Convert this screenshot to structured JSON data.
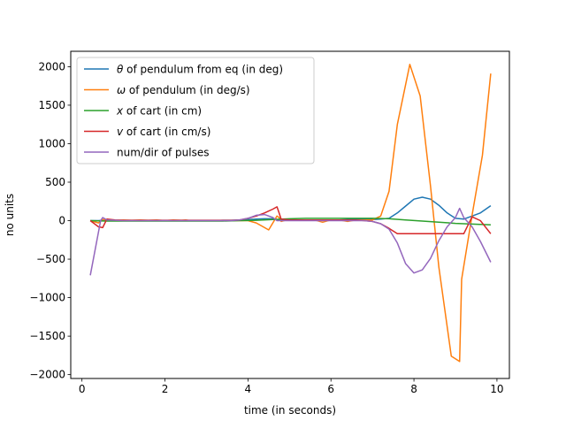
{
  "chart_data": {
    "type": "line",
    "title": "",
    "xlabel": "time (in seconds)",
    "ylabel": "no units",
    "xlim": [
      -0.27,
      10.3
    ],
    "ylim": [
      -2050,
      2200
    ],
    "xticks": [
      0,
      2,
      4,
      6,
      8,
      10
    ],
    "yticks": [
      -2000,
      -1500,
      -1000,
      -500,
      0,
      500,
      1000,
      1500,
      2000
    ],
    "grid": false,
    "legend": {
      "placement": "top-left"
    },
    "series": [
      {
        "name": "θ of pendulum from eq (in deg)",
        "legend_prefix": "θ",
        "legend_rest": " of pendulum from eq (in deg)",
        "color": "#1f77b4",
        "x": [
          0.2,
          0.4,
          0.5,
          0.6,
          0.8,
          1.0,
          1.2,
          1.4,
          1.6,
          1.8,
          2.0,
          2.2,
          2.4,
          2.6,
          2.8,
          3.0,
          3.2,
          3.4,
          3.6,
          3.8,
          4.0,
          4.2,
          4.4,
          4.6,
          4.7,
          4.75,
          4.8,
          5.0,
          5.2,
          5.4,
          5.6,
          5.8,
          6.0,
          6.2,
          6.4,
          6.6,
          6.8,
          7.0,
          7.2,
          7.4,
          7.6,
          7.8,
          8.0,
          8.2,
          8.4,
          8.6,
          8.8,
          9.0,
          9.2,
          9.4,
          9.6,
          9.85
        ],
        "y": [
          0,
          0,
          5,
          5,
          0,
          0,
          0,
          0,
          0,
          0,
          0,
          0,
          0,
          0,
          0,
          0,
          0,
          5,
          5,
          10,
          15,
          20,
          25,
          25,
          15,
          10,
          5,
          5,
          5,
          5,
          5,
          5,
          10,
          10,
          15,
          15,
          15,
          15,
          20,
          30,
          100,
          190,
          280,
          305,
          280,
          200,
          100,
          30,
          20,
          60,
          100,
          195
        ]
      },
      {
        "name": "ω of pendulum (in deg/s)",
        "legend_prefix": "ω",
        "legend_rest": " of pendulum (in deg/s)",
        "color": "#ff7f0e",
        "x": [
          0.2,
          0.4,
          0.5,
          0.6,
          0.8,
          1.0,
          1.2,
          1.4,
          1.6,
          1.8,
          2.0,
          2.2,
          2.4,
          2.5,
          2.6,
          2.8,
          3.0,
          3.2,
          3.4,
          3.6,
          3.8,
          4.0,
          4.2,
          4.5,
          4.7,
          4.75,
          4.8,
          5.0,
          5.2,
          5.4,
          5.6,
          5.8,
          6.0,
          6.2,
          6.4,
          6.6,
          6.8,
          7.0,
          7.2,
          7.4,
          7.6,
          7.9,
          8.15,
          8.4,
          8.6,
          8.9,
          9.1,
          9.15,
          9.4,
          9.65,
          9.85
        ],
        "y": [
          0,
          -30,
          15,
          10,
          5,
          10,
          5,
          10,
          5,
          10,
          0,
          10,
          5,
          10,
          0,
          0,
          0,
          0,
          0,
          0,
          0,
          0,
          -30,
          -120,
          60,
          40,
          -10,
          20,
          10,
          10,
          10,
          -20,
          10,
          10,
          -10,
          10,
          10,
          10,
          60,
          380,
          1250,
          2030,
          1620,
          450,
          -600,
          -1760,
          -1830,
          -760,
          70,
          850,
          1910
        ]
      },
      {
        "name": "x of cart (in cm)",
        "legend_prefix": "x",
        "legend_rest": " of cart (in cm)",
        "color": "#2ca02c",
        "x": [
          0.2,
          0.6,
          1.0,
          1.4,
          1.8,
          2.2,
          2.6,
          3.0,
          3.4,
          3.8,
          4.2,
          4.6,
          5.0,
          5.4,
          5.8,
          6.2,
          6.6,
          7.0,
          7.4,
          7.8,
          8.2,
          8.6,
          9.0,
          9.4,
          9.85
        ],
        "y": [
          0,
          -5,
          -5,
          -5,
          -5,
          -5,
          -5,
          -5,
          -5,
          0,
          5,
          15,
          25,
          30,
          30,
          30,
          30,
          30,
          25,
          10,
          -5,
          -20,
          -35,
          -45,
          -55
        ]
      },
      {
        "name": "v of cart  (in cm/s)",
        "legend_prefix": "v",
        "legend_rest": " of cart  (in cm/s)",
        "color": "#d62728",
        "x": [
          0.2,
          0.4,
          0.5,
          0.6,
          0.8,
          1.0,
          1.2,
          1.4,
          1.6,
          1.8,
          2.0,
          2.2,
          2.4,
          2.6,
          2.8,
          3.0,
          3.2,
          3.4,
          3.6,
          3.8,
          4.0,
          4.2,
          4.4,
          4.6,
          4.7,
          4.75,
          4.8,
          5.0,
          5.2,
          5.4,
          5.6,
          5.8,
          6.0,
          6.2,
          6.4,
          6.6,
          6.8,
          7.0,
          7.2,
          7.4,
          7.6,
          7.8,
          8.0,
          8.2,
          8.4,
          8.6,
          8.8,
          9.0,
          9.2,
          9.4,
          9.6,
          9.85
        ],
        "y": [
          0,
          -80,
          -90,
          20,
          10,
          5,
          5,
          5,
          5,
          5,
          5,
          5,
          5,
          5,
          5,
          5,
          5,
          5,
          5,
          10,
          30,
          60,
          100,
          150,
          180,
          100,
          20,
          10,
          10,
          10,
          10,
          10,
          10,
          10,
          10,
          10,
          0,
          -10,
          -40,
          -100,
          -170,
          -170,
          -170,
          -170,
          -170,
          -170,
          -170,
          -170,
          -170,
          50,
          0,
          -170
        ]
      },
      {
        "name": "num/dir of pulses",
        "legend_prefix": "",
        "legend_rest": "num/dir of pulses",
        "color": "#9467bd",
        "x": [
          0.2,
          0.45,
          0.5,
          0.6,
          0.8,
          1.0,
          1.2,
          1.4,
          1.6,
          1.8,
          2.0,
          2.2,
          2.4,
          2.6,
          2.8,
          3.0,
          3.2,
          3.4,
          3.6,
          3.8,
          4.0,
          4.2,
          4.4,
          4.6,
          4.7,
          4.8,
          5.0,
          5.2,
          5.4,
          5.6,
          5.8,
          6.0,
          6.2,
          6.4,
          6.6,
          6.8,
          7.0,
          7.2,
          7.4,
          7.6,
          7.8,
          8.0,
          8.2,
          8.4,
          8.6,
          8.8,
          9.0,
          9.1,
          9.2,
          9.4,
          9.6,
          9.85
        ],
        "y": [
          -710,
          0,
          40,
          10,
          5,
          0,
          0,
          0,
          0,
          0,
          0,
          0,
          0,
          0,
          0,
          0,
          0,
          0,
          0,
          10,
          30,
          70,
          80,
          40,
          0,
          0,
          0,
          0,
          0,
          0,
          0,
          0,
          0,
          0,
          0,
          0,
          -10,
          -40,
          -110,
          -290,
          -560,
          -680,
          -640,
          -490,
          -260,
          -80,
          40,
          160,
          40,
          -80,
          -270,
          -540
        ]
      }
    ]
  }
}
